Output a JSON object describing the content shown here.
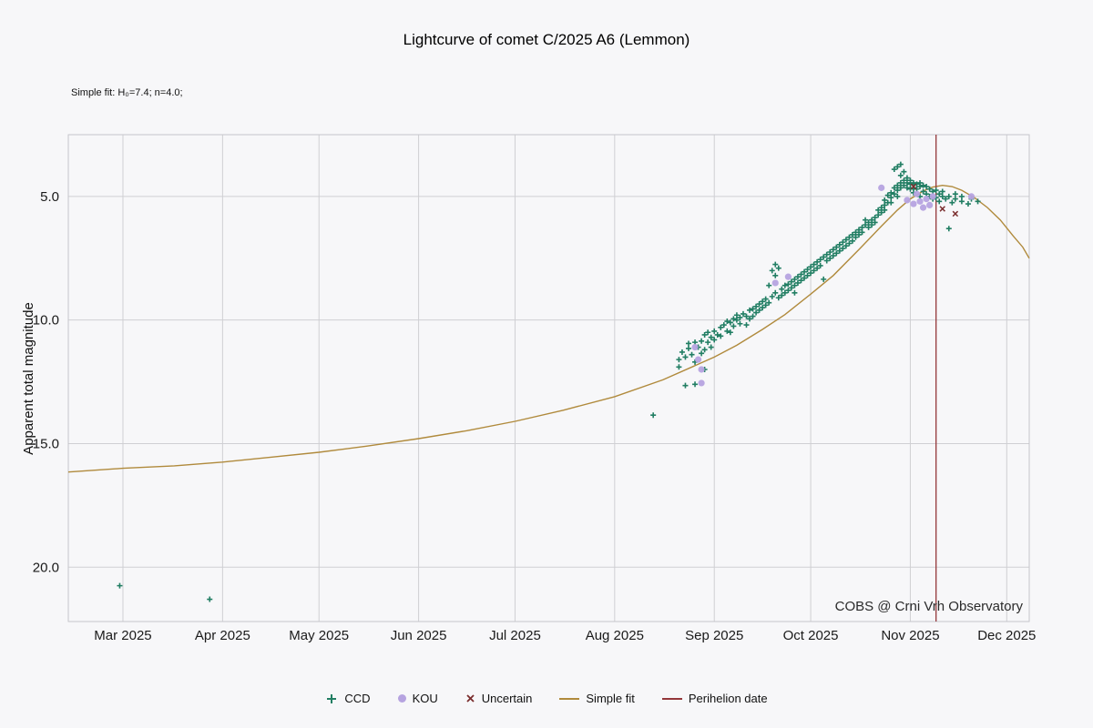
{
  "chart_data": {
    "type": "scatter",
    "title": "Lightcurve of comet C/2025 A6 (Lemmon)",
    "subtitle": "Simple fit: H₀=7.4; n=4.0;",
    "ylabel": "Apparent total magnitude",
    "watermark": "COBS @ Crni Vrh Observatory",
    "colors": {
      "background": "#f7f7f9",
      "grid": "#cfcfd3",
      "border": "#c6c6cb",
      "ccd": "#217e63",
      "kou": "#b6a3e0",
      "uncertain": "#7a2d2d",
      "fit": "#b08a3c",
      "perihelion": "#94373a",
      "text": "#1a1a1a"
    },
    "x_axis": {
      "unit": "day-of-year-2025",
      "range": [
        42,
        341
      ],
      "ticks": [
        {
          "day": 59,
          "label": "Mar 2025"
        },
        {
          "day": 90,
          "label": "Apr 2025"
        },
        {
          "day": 120,
          "label": "May 2025"
        },
        {
          "day": 151,
          "label": "Jun 2025"
        },
        {
          "day": 181,
          "label": "Jul 2025"
        },
        {
          "day": 212,
          "label": "Aug 2025"
        },
        {
          "day": 243,
          "label": "Sep 2025"
        },
        {
          "day": 273,
          "label": "Oct 2025"
        },
        {
          "day": 304,
          "label": "Nov 2025"
        },
        {
          "day": 334,
          "label": "Dec 2025"
        }
      ]
    },
    "y_axis": {
      "inverted": true,
      "range": [
        2.5,
        22.2
      ],
      "ticks": [
        5.0,
        10.0,
        15.0,
        20.0
      ],
      "tick_labels": [
        "5.0",
        "10.0",
        "15.0",
        "20.0"
      ]
    },
    "series": [
      {
        "name": "CCD",
        "marker": "plus",
        "color": "#217e63",
        "points": [
          [
            58,
            20.75
          ],
          [
            86,
            21.3
          ],
          [
            224,
            13.85
          ],
          [
            232,
            11.6
          ],
          [
            232,
            11.9
          ],
          [
            233,
            11.3
          ],
          [
            234,
            11.5
          ],
          [
            234,
            12.65
          ],
          [
            235,
            11.15
          ],
          [
            235,
            10.95
          ],
          [
            236,
            11.4
          ],
          [
            237,
            10.9
          ],
          [
            237,
            11.7
          ],
          [
            237,
            12.6
          ],
          [
            238,
            11.1
          ],
          [
            239,
            10.85
          ],
          [
            239,
            11.35
          ],
          [
            240,
            10.6
          ],
          [
            240,
            11.2
          ],
          [
            240,
            12.0
          ],
          [
            241,
            10.9
          ],
          [
            241,
            10.5
          ],
          [
            242,
            10.7
          ],
          [
            242,
            11.1
          ],
          [
            243,
            10.45
          ],
          [
            243,
            10.8
          ],
          [
            244,
            10.6
          ],
          [
            245,
            10.3
          ],
          [
            245,
            10.65
          ],
          [
            246,
            10.2
          ],
          [
            247,
            10.45
          ],
          [
            247,
            10.05
          ],
          [
            248,
            10.1
          ],
          [
            248,
            10.5
          ],
          [
            249,
            9.95
          ],
          [
            249,
            10.25
          ],
          [
            250,
            10.0
          ],
          [
            250,
            9.8
          ],
          [
            251,
            9.9
          ],
          [
            251,
            10.15
          ],
          [
            252,
            9.75
          ],
          [
            253,
            9.85
          ],
          [
            253,
            10.2
          ],
          [
            254,
            9.6
          ],
          [
            254,
            9.95
          ],
          [
            255,
            9.55
          ],
          [
            255,
            9.85
          ],
          [
            256,
            9.45
          ],
          [
            256,
            9.7
          ],
          [
            257,
            9.35
          ],
          [
            257,
            9.6
          ],
          [
            258,
            9.25
          ],
          [
            258,
            9.5
          ],
          [
            259,
            9.15
          ],
          [
            259,
            9.4
          ],
          [
            260,
            9.3
          ],
          [
            260,
            8.6
          ],
          [
            261,
            9.05
          ],
          [
            261,
            8.0
          ],
          [
            262,
            8.9
          ],
          [
            262,
            8.2
          ],
          [
            262,
            7.75
          ],
          [
            263,
            9.1
          ],
          [
            263,
            7.9
          ],
          [
            264,
            8.75
          ],
          [
            264,
            9.0
          ],
          [
            265,
            8.6
          ],
          [
            265,
            8.9
          ],
          [
            266,
            8.55
          ],
          [
            266,
            8.8
          ],
          [
            267,
            8.45
          ],
          [
            267,
            8.7
          ],
          [
            268,
            8.35
          ],
          [
            268,
            8.6
          ],
          [
            268,
            8.9
          ],
          [
            269,
            8.25
          ],
          [
            269,
            8.5
          ],
          [
            270,
            8.15
          ],
          [
            270,
            8.4
          ],
          [
            271,
            8.05
          ],
          [
            271,
            8.3
          ],
          [
            272,
            7.95
          ],
          [
            272,
            8.2
          ],
          [
            273,
            7.85
          ],
          [
            273,
            8.1
          ],
          [
            274,
            7.75
          ],
          [
            274,
            8.0
          ],
          [
            275,
            7.65
          ],
          [
            275,
            7.9
          ],
          [
            276,
            7.55
          ],
          [
            276,
            7.8
          ],
          [
            277,
            7.45
          ],
          [
            277,
            8.35
          ],
          [
            278,
            7.35
          ],
          [
            278,
            7.6
          ],
          [
            279,
            7.25
          ],
          [
            279,
            7.5
          ],
          [
            280,
            7.15
          ],
          [
            280,
            7.4
          ],
          [
            281,
            7.05
          ],
          [
            281,
            7.3
          ],
          [
            282,
            6.95
          ],
          [
            282,
            7.2
          ],
          [
            283,
            6.85
          ],
          [
            283,
            7.1
          ],
          [
            284,
            6.75
          ],
          [
            284,
            7.0
          ],
          [
            285,
            6.65
          ],
          [
            285,
            6.9
          ],
          [
            286,
            6.55
          ],
          [
            286,
            6.8
          ],
          [
            287,
            6.45
          ],
          [
            287,
            6.65
          ],
          [
            288,
            6.35
          ],
          [
            288,
            6.55
          ],
          [
            289,
            6.25
          ],
          [
            289,
            6.45
          ],
          [
            290,
            6.15
          ],
          [
            290,
            5.95
          ],
          [
            291,
            6.05
          ],
          [
            291,
            6.25
          ],
          [
            292,
            5.95
          ],
          [
            292,
            6.15
          ],
          [
            293,
            5.85
          ],
          [
            293,
            6.05
          ],
          [
            294,
            5.75
          ],
          [
            294,
            5.55
          ],
          [
            295,
            5.45
          ],
          [
            295,
            5.65
          ],
          [
            296,
            5.35
          ],
          [
            296,
            5.15
          ],
          [
            296,
            5.55
          ],
          [
            297,
            5.25
          ],
          [
            297,
            4.95
          ],
          [
            298,
            5.05
          ],
          [
            298,
            4.85
          ],
          [
            298,
            5.25
          ],
          [
            299,
            4.9
          ],
          [
            299,
            4.65
          ],
          [
            299,
            3.9
          ],
          [
            300,
            4.75
          ],
          [
            300,
            4.55
          ],
          [
            300,
            5.0
          ],
          [
            300,
            3.8
          ],
          [
            301,
            4.65
          ],
          [
            301,
            4.45
          ],
          [
            301,
            3.7
          ],
          [
            301,
            4.15
          ],
          [
            302,
            4.55
          ],
          [
            302,
            4.35
          ],
          [
            302,
            4.0
          ],
          [
            303,
            4.45
          ],
          [
            303,
            4.65
          ],
          [
            303,
            4.25
          ],
          [
            304,
            4.5
          ],
          [
            304,
            4.35
          ],
          [
            304,
            4.7
          ],
          [
            305,
            4.45
          ],
          [
            305,
            4.65
          ],
          [
            305,
            4.85
          ],
          [
            306,
            4.5
          ],
          [
            306,
            4.7
          ],
          [
            307,
            4.45
          ],
          [
            307,
            4.6
          ],
          [
            307,
            5.0
          ],
          [
            308,
            4.55
          ],
          [
            308,
            4.8
          ],
          [
            309,
            4.6
          ],
          [
            309,
            4.9
          ],
          [
            310,
            4.7
          ],
          [
            310,
            5.0
          ],
          [
            311,
            4.8
          ],
          [
            311,
            5.1
          ],
          [
            312,
            4.75
          ],
          [
            312,
            5.05
          ],
          [
            313,
            4.9
          ],
          [
            313,
            5.2
          ],
          [
            314,
            5.0
          ],
          [
            314,
            4.8
          ],
          [
            315,
            5.1
          ],
          [
            316,
            5.0
          ],
          [
            316,
            6.3
          ],
          [
            317,
            5.25
          ],
          [
            318,
            5.1
          ],
          [
            318,
            4.9
          ],
          [
            320,
            5.2
          ],
          [
            320,
            5.0
          ],
          [
            322,
            5.3
          ],
          [
            323,
            5.1
          ],
          [
            325,
            5.2
          ]
        ]
      },
      {
        "name": "KOU",
        "marker": "circle",
        "color": "#b6a3e0",
        "points": [
          [
            237,
            11.1
          ],
          [
            238,
            11.6
          ],
          [
            239,
            12.0
          ],
          [
            239,
            12.55
          ],
          [
            262,
            8.5
          ],
          [
            266,
            8.25
          ],
          [
            295,
            4.65
          ],
          [
            303,
            5.15
          ],
          [
            305,
            5.3
          ],
          [
            306,
            4.9
          ],
          [
            307,
            5.2
          ],
          [
            308,
            5.45
          ],
          [
            309,
            5.1
          ],
          [
            310,
            5.35
          ],
          [
            311,
            5.0
          ],
          [
            323,
            5.0
          ]
        ]
      },
      {
        "name": "Uncertain",
        "marker": "x",
        "color": "#7a2d2d",
        "points": [
          [
            305,
            4.6
          ],
          [
            314,
            5.5
          ],
          [
            318,
            5.7
          ]
        ]
      }
    ],
    "fit_line": {
      "name": "Simple fit",
      "color": "#b08a3c",
      "points": [
        [
          42,
          16.15
        ],
        [
          59,
          16.0
        ],
        [
          75,
          15.9
        ],
        [
          90,
          15.75
        ],
        [
          105,
          15.55
        ],
        [
          120,
          15.35
        ],
        [
          135,
          15.1
        ],
        [
          151,
          14.8
        ],
        [
          166,
          14.48
        ],
        [
          181,
          14.1
        ],
        [
          196,
          13.65
        ],
        [
          212,
          13.1
        ],
        [
          227,
          12.42
        ],
        [
          243,
          11.5
        ],
        [
          250,
          11.02
        ],
        [
          258,
          10.38
        ],
        [
          265,
          9.78
        ],
        [
          273,
          8.95
        ],
        [
          280,
          8.2
        ],
        [
          288,
          7.15
        ],
        [
          295,
          6.2
        ],
        [
          300,
          5.55
        ],
        [
          304,
          5.1
        ],
        [
          308,
          4.78
        ],
        [
          311,
          4.62
        ],
        [
          314,
          4.55
        ],
        [
          317,
          4.6
        ],
        [
          320,
          4.75
        ],
        [
          324,
          5.05
        ],
        [
          328,
          5.45
        ],
        [
          332,
          5.95
        ],
        [
          336,
          6.6
        ],
        [
          339,
          7.05
        ],
        [
          341,
          7.5
        ]
      ]
    },
    "perihelion": {
      "name": "Perihelion date",
      "color": "#94373a",
      "day": 312
    }
  }
}
